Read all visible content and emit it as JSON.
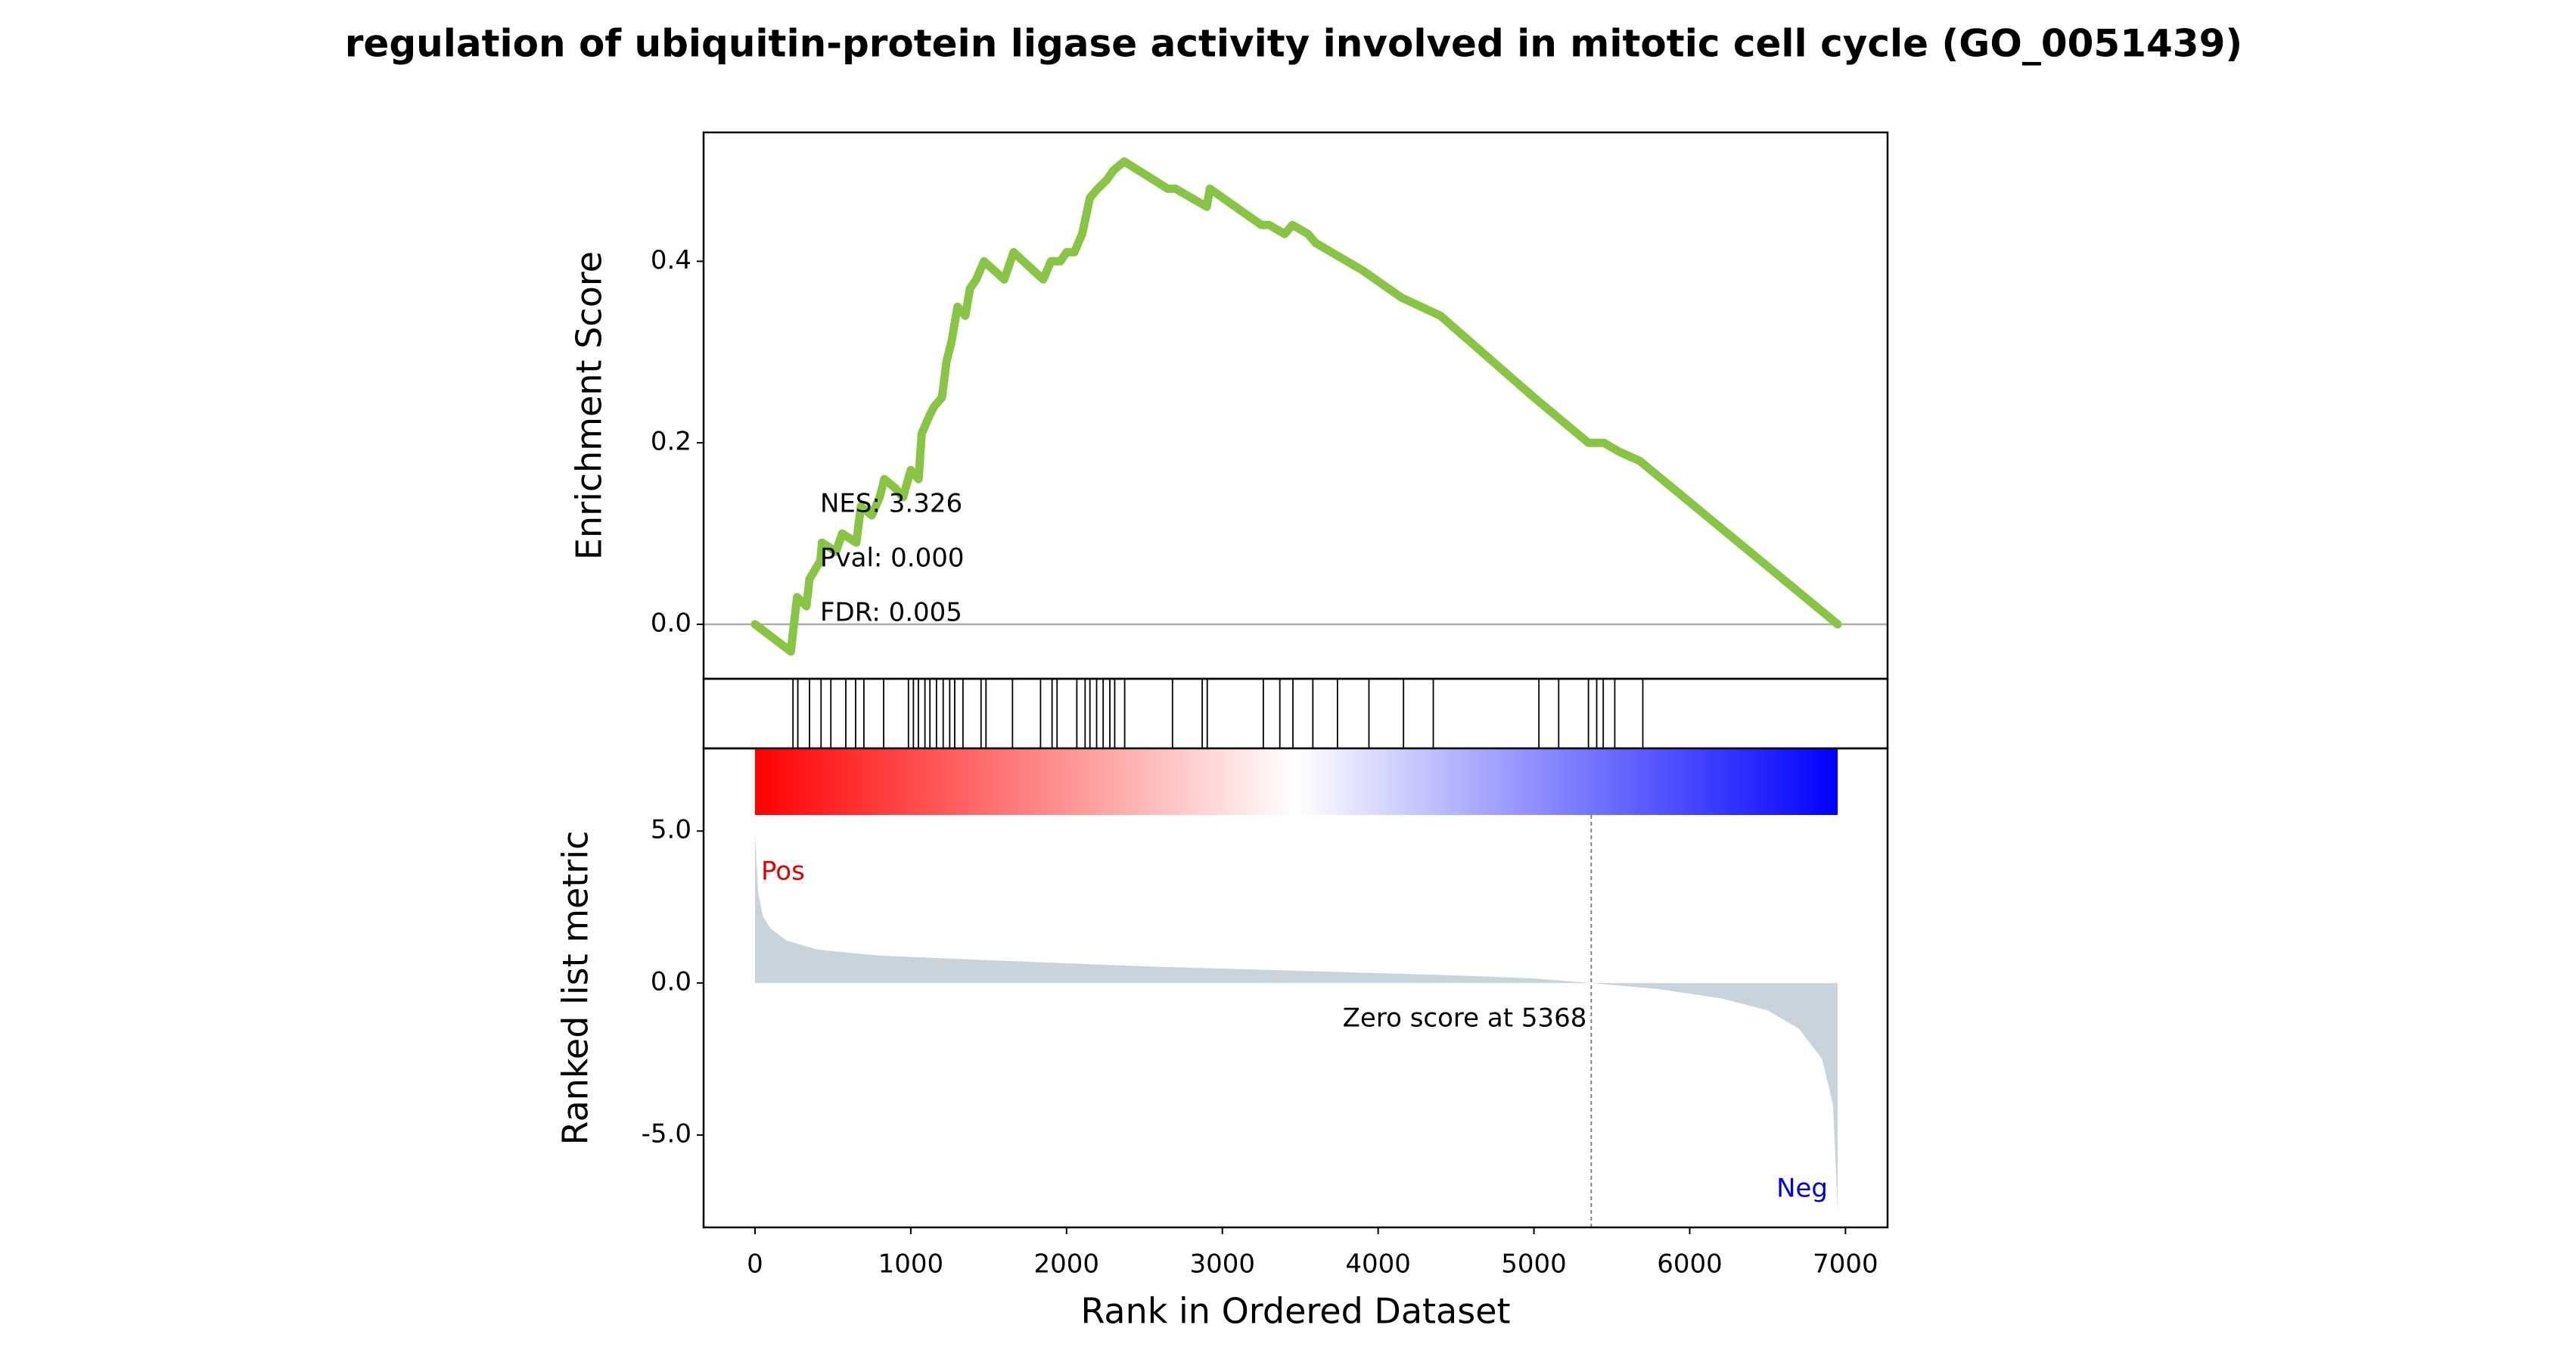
{
  "chart_data": [
    {
      "type": "line",
      "title": "regulation of ubiquitin-protein ligase activity involved in mitotic cell cycle (GO_0051439)",
      "ylabel": "Enrichment Score",
      "annotations": [
        "NES: 3.326",
        "Pval: 0.000",
        "FDR: 0.005"
      ],
      "x": [
        0,
        230,
        250,
        270,
        330,
        350,
        420,
        430,
        520,
        560,
        650,
        680,
        750,
        800,
        830,
        900,
        950,
        1000,
        1050,
        1070,
        1120,
        1150,
        1200,
        1230,
        1260,
        1300,
        1350,
        1380,
        1420,
        1470,
        1600,
        1660,
        1850,
        1900,
        1960,
        2000,
        2050,
        2100,
        2150,
        2200,
        2260,
        2300,
        2370,
        2650,
        2700,
        2900,
        2920,
        3250,
        3300,
        3400,
        3450,
        3550,
        3600,
        3700,
        3900,
        4150,
        4400,
        5000,
        5350,
        5450,
        5550,
        5680,
        6950
      ],
      "values": [
        0,
        -0.03,
        0.0,
        0.03,
        0.02,
        0.05,
        0.07,
        0.09,
        0.08,
        0.1,
        0.09,
        0.13,
        0.12,
        0.14,
        0.16,
        0.15,
        0.14,
        0.17,
        0.16,
        0.21,
        0.23,
        0.24,
        0.25,
        0.29,
        0.31,
        0.35,
        0.34,
        0.37,
        0.38,
        0.4,
        0.38,
        0.41,
        0.38,
        0.4,
        0.4,
        0.41,
        0.41,
        0.43,
        0.47,
        0.48,
        0.49,
        0.5,
        0.51,
        0.48,
        0.48,
        0.46,
        0.48,
        0.44,
        0.44,
        0.43,
        0.44,
        0.43,
        0.42,
        0.41,
        0.39,
        0.36,
        0.34,
        0.25,
        0.2,
        0.2,
        0.19,
        0.18,
        0.0
      ],
      "color": "#88c544",
      "hline": 0,
      "ylim": [
        -0.06,
        0.542
      ],
      "yticks": [
        {
          "value": 0,
          "label": "0.0"
        },
        0.2,
        0.4
      ]
    },
    {
      "type": "rug",
      "x": [
        244,
        275,
        350,
        424,
        487,
        583,
        646,
        699,
        826,
        985,
        1017,
        1049,
        1091,
        1123,
        1165,
        1208,
        1250,
        1282,
        1335,
        1451,
        1483,
        1653,
        1833,
        1907,
        1939,
        2066,
        2119,
        2150,
        2193,
        2235,
        2278,
        2309,
        2373,
        2680,
        2871,
        2903,
        3263,
        3369,
        3453,
        3581,
        3739,
        3941,
        4163,
        4354,
        5032,
        5159,
        5350,
        5403,
        5445,
        5519,
        5699
      ],
      "color": "#000000"
    },
    {
      "type": "area",
      "ylabel": "Ranked list metric",
      "xlabel": "Rank in Ordered Dataset",
      "x": [
        0,
        20,
        50,
        100,
        200,
        400,
        800,
        1500,
        2500,
        3500,
        4500,
        5000,
        5368,
        5800,
        6200,
        6500,
        6700,
        6850,
        6920,
        6950
      ],
      "values": [
        4.9,
        3.0,
        2.2,
        1.8,
        1.4,
        1.1,
        0.9,
        0.75,
        0.55,
        0.4,
        0.25,
        0.15,
        0,
        -0.2,
        -0.5,
        -0.9,
        -1.5,
        -2.5,
        -4,
        -7.5
      ],
      "color": "#c9d3dc",
      "colormap": [
        "#ff0000",
        "#ffffff",
        "#0000ff"
      ],
      "pos_label": "Pos",
      "pos_color": "#e00000",
      "neg_label": "Neg",
      "neg_color": "#0000e0",
      "zero_label": "Zero score at 5368",
      "zero_rank": 5368,
      "xlim": [
        -330,
        7270
      ],
      "xticks": [
        0,
        1000,
        2000,
        3000,
        4000,
        5000,
        6000,
        7000
      ],
      "ylim": [
        -8.04,
        7.72
      ],
      "yticks": [
        {
          "value": 5,
          "label": "5.0"
        },
        {
          "value": 0,
          "label": "0.0"
        },
        {
          "value": -5,
          "label": "-5.0"
        }
      ]
    }
  ]
}
